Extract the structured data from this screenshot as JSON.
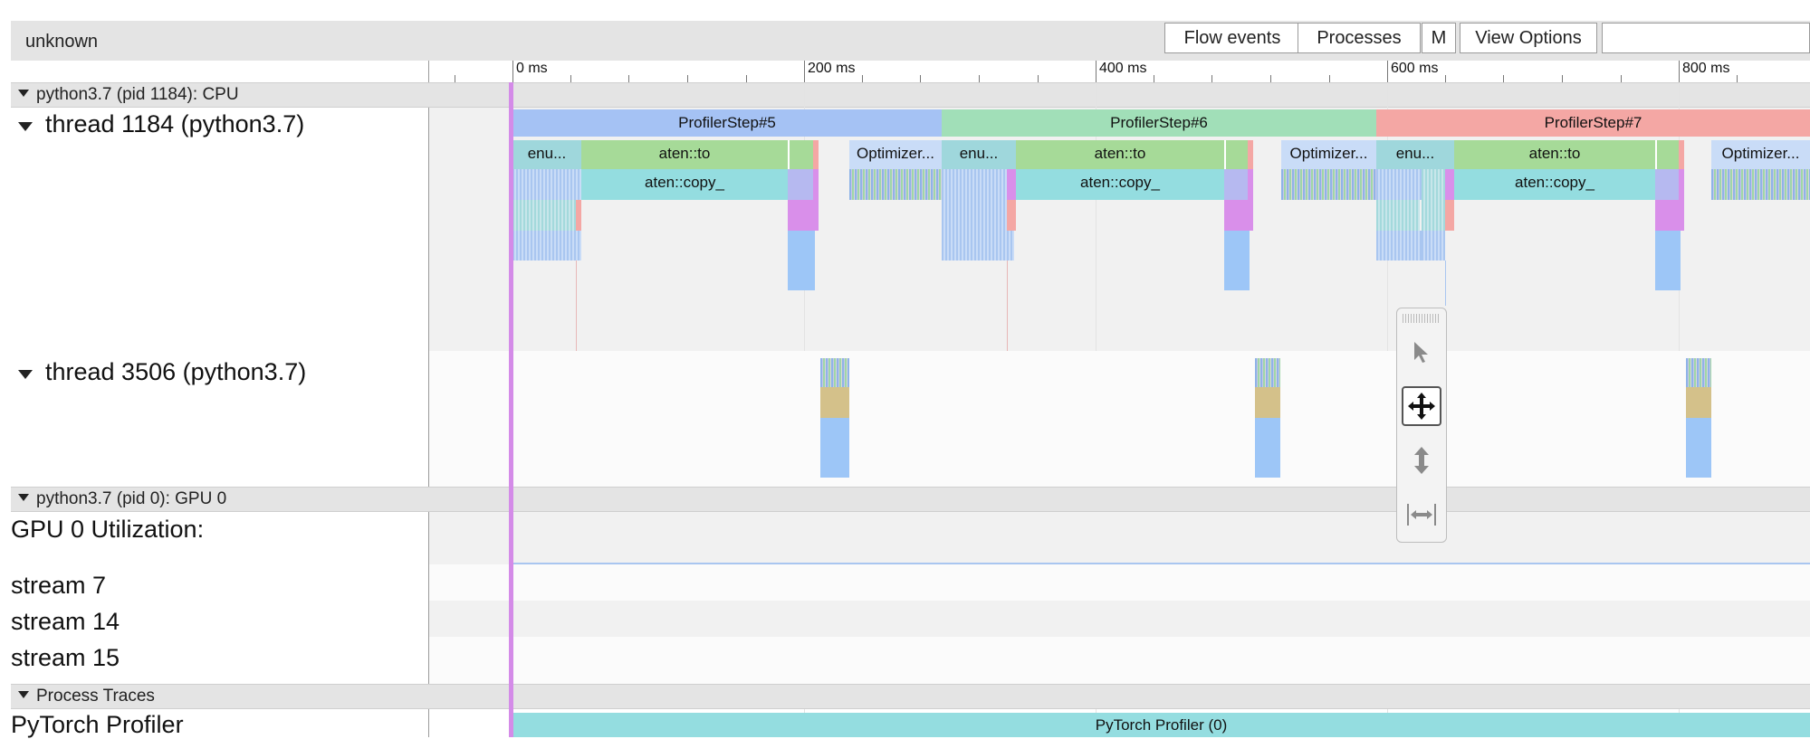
{
  "header": {
    "title": "unknown",
    "buttons": {
      "flow_events": "Flow events",
      "processes": "Processes",
      "m": "M",
      "view_options": "View Options"
    },
    "search": {
      "value": ""
    }
  },
  "ruler": {
    "ticks": [
      "0 ms",
      "200 ms",
      "400 ms",
      "600 ms",
      "800 ms"
    ]
  },
  "sections": {
    "cpu": "python3.7 (pid 1184): CPU",
    "gpu": "python3.7 (pid 0): GPU 0",
    "process_traces": "Process Traces"
  },
  "threads": {
    "t1184": "thread 1184 (python3.7)",
    "t3506": "thread 3506 (python3.7)"
  },
  "gpu_rows": {
    "utilization": "GPU 0 Utilization:",
    "stream7": "stream 7",
    "stream14": "stream 14",
    "stream15": "stream 15"
  },
  "profiler": {
    "label": "PyTorch Profiler",
    "track_label": "PyTorch Profiler (0)"
  },
  "steps": [
    "ProfilerStep#5",
    "ProfilerStep#6",
    "ProfilerStep#7"
  ],
  "slices": {
    "enu": "enu...",
    "aten_to": "aten::to",
    "aten_copy": "aten::copy_",
    "optimizer": "Optimizer..."
  },
  "colors": {
    "step5": "#a5c2f4",
    "step6": "#a1dfb8",
    "step7": "#f4a7a4",
    "aten_to": "#a6da98",
    "aten_copy": "#94dde0",
    "teal": "#8ed4dd",
    "magenta": "#d98fea",
    "blue": "#9dc6f7",
    "tan": "#d4c18a",
    "cursor": "#d48be8"
  },
  "toolbox": {
    "icons": [
      "select-arrow-icon",
      "pan-move-icon",
      "zoom-updown-icon",
      "timing-range-icon"
    ],
    "active": "pan-move-icon"
  }
}
